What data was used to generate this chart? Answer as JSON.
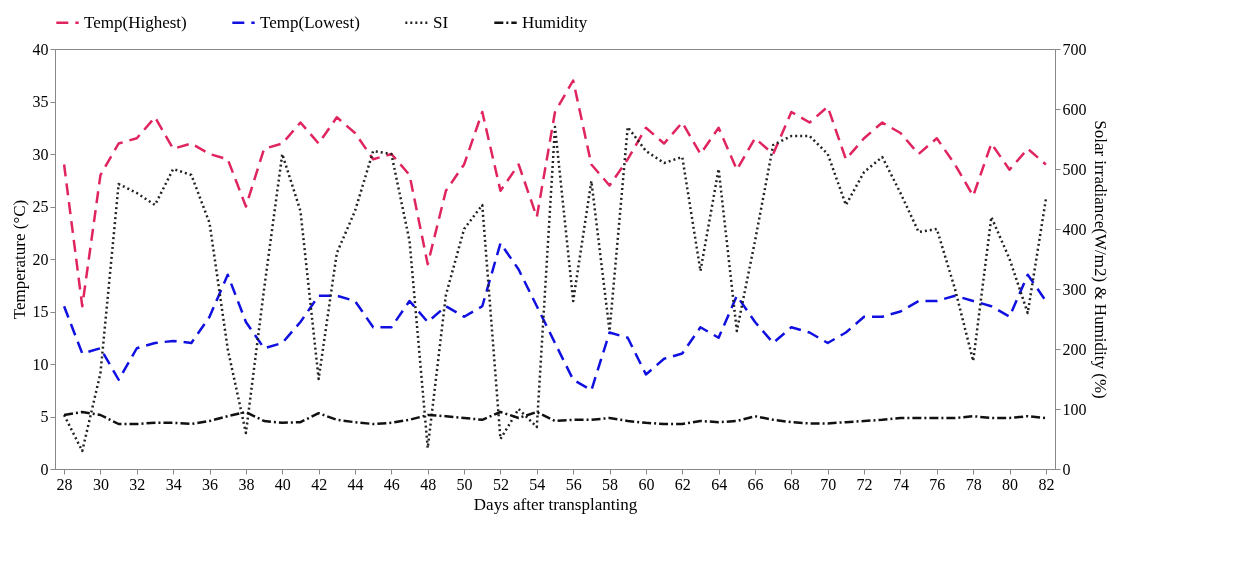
{
  "chart_data": {
    "type": "line",
    "xlabel": "Days after transplanting",
    "ylabel": "Temperature (°C)",
    "y2label": "Solar irradiance(W/m2) & Humidity (%)",
    "x": [
      28,
      29,
      30,
      31,
      32,
      33,
      34,
      35,
      36,
      37,
      38,
      39,
      40,
      41,
      42,
      43,
      44,
      45,
      46,
      47,
      48,
      49,
      50,
      51,
      52,
      53,
      54,
      55,
      56,
      57,
      58,
      59,
      60,
      61,
      62,
      63,
      64,
      65,
      66,
      67,
      68,
      69,
      70,
      71,
      72,
      73,
      74,
      75,
      76,
      77,
      78,
      79,
      80,
      81,
      82
    ],
    "series": [
      {
        "name": "Temp(Highest)",
        "color": "#e0245e",
        "line_style": "dashed",
        "values": [
          29,
          15.5,
          28,
          31,
          31.5,
          33.5,
          30.5,
          31,
          30,
          29.5,
          25,
          30.5,
          31,
          33,
          31,
          33.5,
          32,
          29.5,
          30,
          28,
          19.5,
          26.5,
          29,
          34,
          26.5,
          29,
          24,
          34,
          37,
          29,
          27,
          29.5,
          32.5,
          31,
          33,
          30,
          32.5,
          28.5,
          31.5,
          30,
          34,
          33,
          34.5,
          29.5,
          31.5,
          33,
          32,
          30,
          31.5,
          29,
          26,
          31,
          28.5,
          30.5,
          29
        ]
      },
      {
        "name": "Temp(Lowest)",
        "color": "#1010e0",
        "line_style": "dashed",
        "values": [
          15.5,
          11,
          11.5,
          8.5,
          11.5,
          12,
          12.2,
          12,
          14.5,
          18.5,
          14,
          11.5,
          12,
          14,
          16.5,
          16.5,
          16,
          13.5,
          13.5,
          16,
          14,
          15.5,
          14.5,
          15.5,
          21.5,
          19,
          15.5,
          12,
          8.5,
          7.5,
          13,
          12.5,
          9,
          10.5,
          11,
          13.5,
          12.5,
          16.5,
          14,
          12,
          13.5,
          13,
          12,
          13,
          14.5,
          14.5,
          15,
          16,
          16,
          16.5,
          16,
          15.5,
          14.5,
          18.5,
          16
        ]
      },
      {
        "name": "SI",
        "color": "#222222",
        "line_style": "dotted",
        "axis": "y2",
        "values": [
          90,
          30,
          160,
          475,
          460,
          440,
          500,
          490,
          410,
          200,
          60,
          300,
          525,
          430,
          150,
          360,
          430,
          530,
          525,
          380,
          35,
          290,
          400,
          440,
          50,
          100,
          70,
          570,
          280,
          480,
          230,
          570,
          530,
          510,
          520,
          330,
          500,
          230,
          380,
          540,
          555,
          555,
          525,
          440,
          495,
          520,
          460,
          395,
          400,
          300,
          180,
          420,
          350,
          260,
          450
        ]
      },
      {
        "name": "Humidity",
        "color": "#111111",
        "line_style": "dashdot",
        "axis": "y2",
        "values": [
          90,
          95,
          90,
          75,
          75,
          77,
          77,
          75,
          80,
          88,
          95,
          80,
          77,
          78,
          93,
          82,
          78,
          75,
          77,
          82,
          90,
          88,
          85,
          82,
          95,
          85,
          95,
          80,
          82,
          82,
          85,
          80,
          77,
          75,
          75,
          80,
          78,
          80,
          88,
          82,
          78,
          76,
          76,
          78,
          80,
          82,
          85,
          85,
          85,
          85,
          88,
          85,
          85,
          88,
          85
        ]
      }
    ],
    "xlim": [
      27.5,
      82.5
    ],
    "xticks": [
      28,
      30,
      32,
      34,
      36,
      38,
      40,
      42,
      44,
      46,
      48,
      50,
      52,
      54,
      56,
      58,
      60,
      62,
      64,
      66,
      68,
      70,
      72,
      74,
      76,
      78,
      80,
      82
    ],
    "ylim": [
      0,
      40
    ],
    "yticks": [
      0,
      5,
      10,
      15,
      20,
      25,
      30,
      35,
      40
    ],
    "y2lim": [
      0,
      700
    ],
    "y2ticks": [
      0,
      100,
      200,
      300,
      400,
      500,
      600,
      700
    ],
    "grid": false,
    "legend": "top",
    "marker": "none"
  }
}
